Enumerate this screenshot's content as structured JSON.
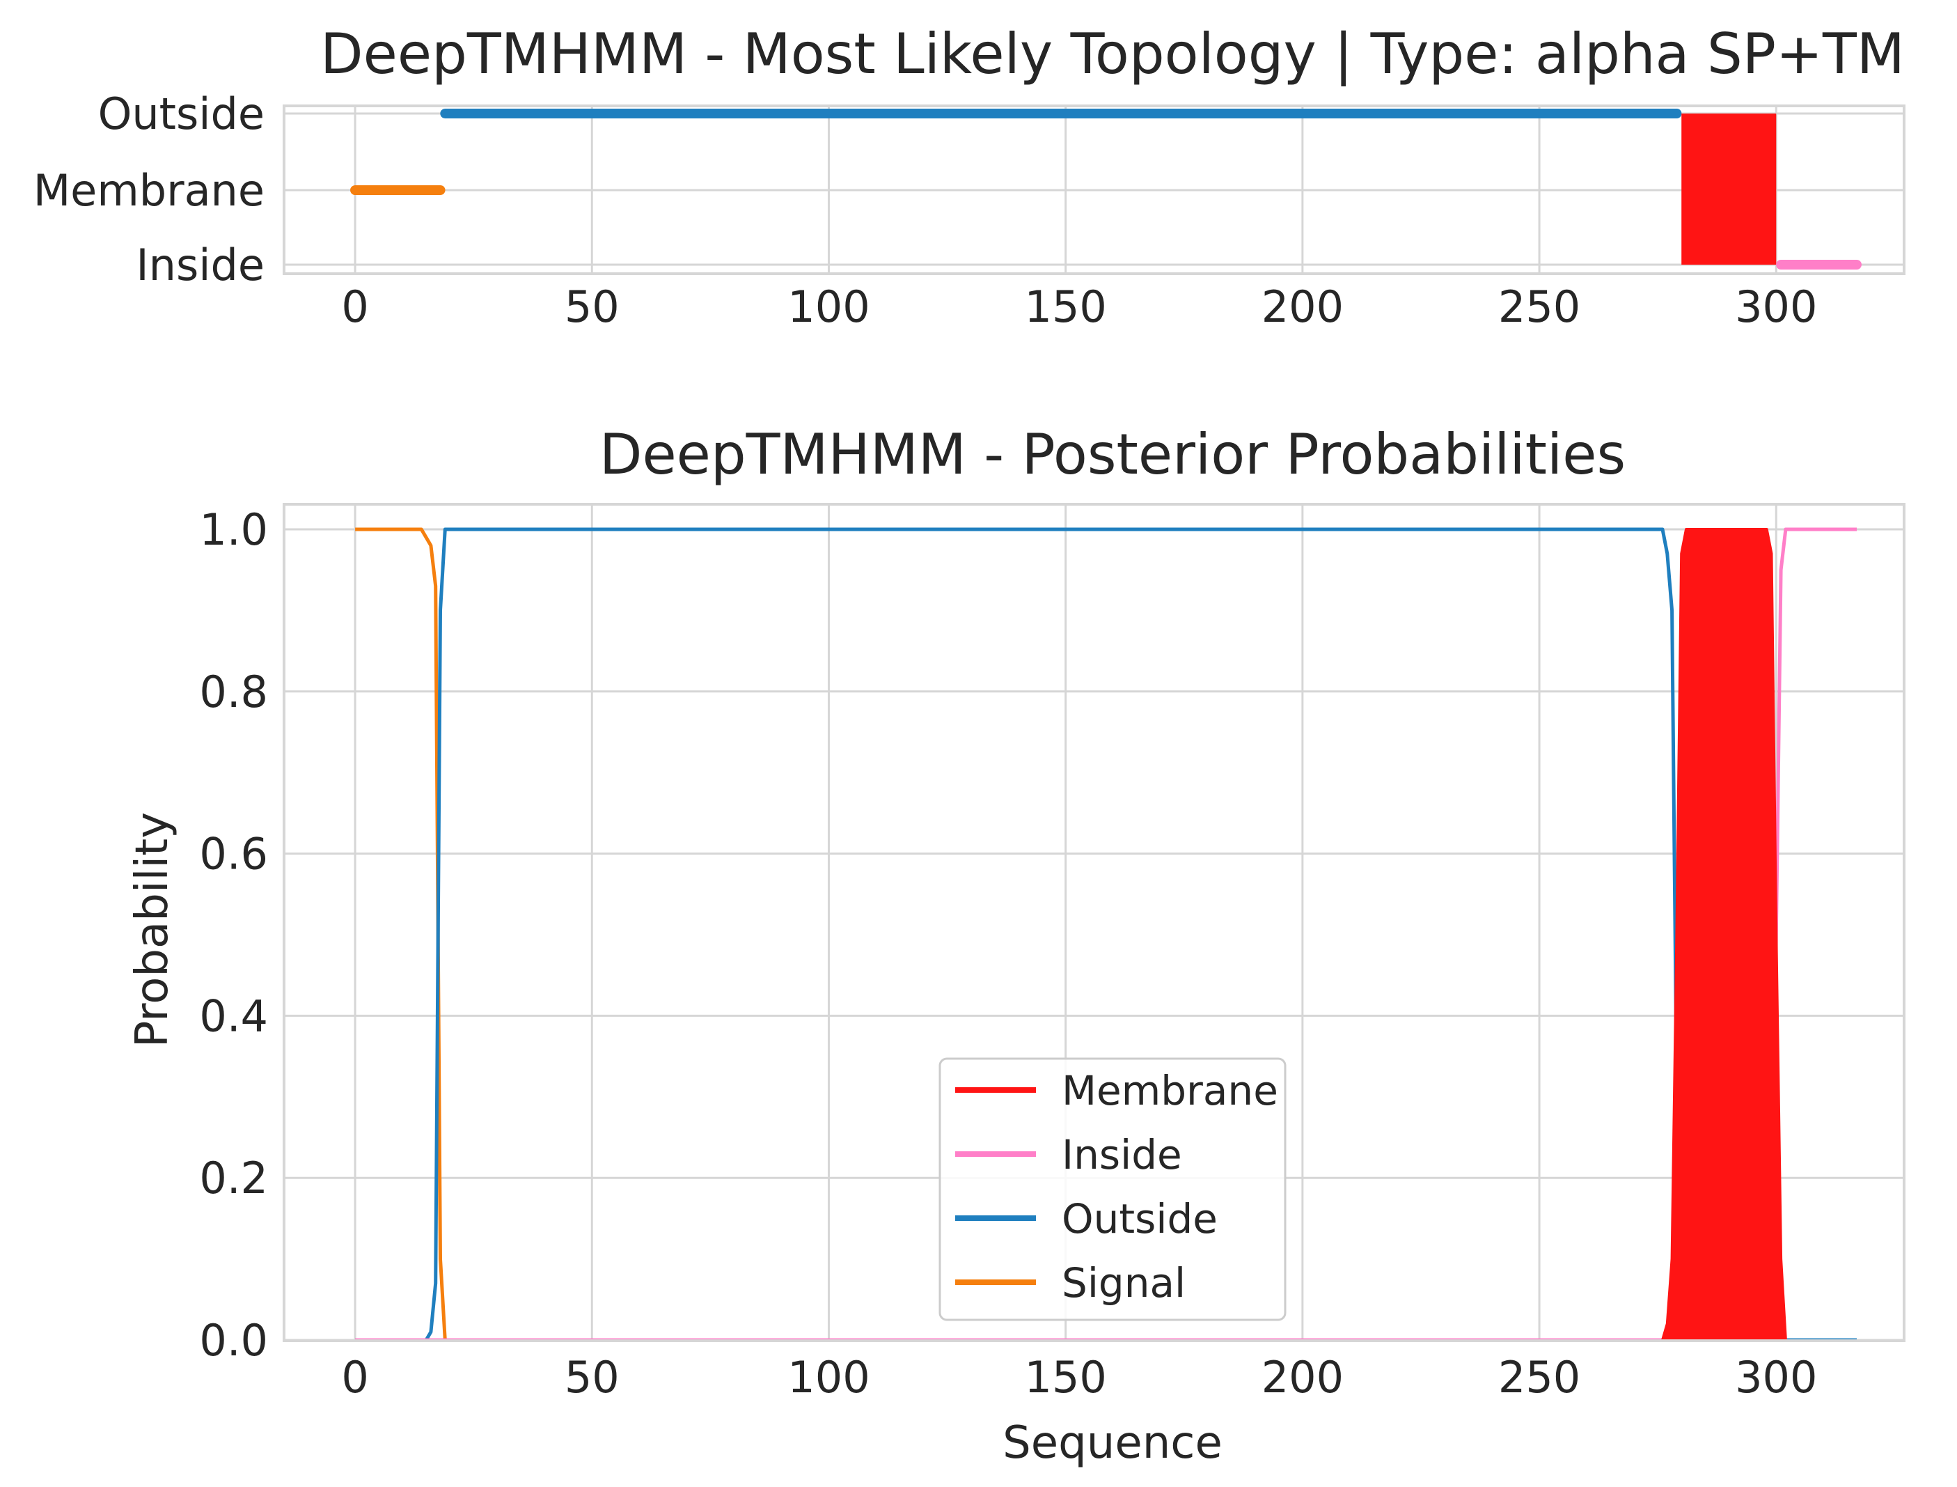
{
  "colors": {
    "membrane": "#ff1414",
    "inside": "#ff7fc8",
    "outside": "#1f7fbf",
    "signal": "#f57f0e",
    "grid": "#d6d6d6",
    "frame": "#d6d6d6"
  },
  "chart_data": [
    {
      "type": "line",
      "title": "DeepTMHMM - Most Likely Topology | Type: alpha SP+TM",
      "xlabel": "",
      "ylabel": "",
      "xlim": [
        -15,
        327
      ],
      "xticks": [
        0,
        50,
        100,
        150,
        200,
        250,
        300
      ],
      "ycategories": [
        "Inside",
        "Membrane",
        "Outside"
      ],
      "grid": true,
      "segments": [
        {
          "name": "Signal",
          "level": "Membrane",
          "x": [
            0,
            18
          ]
        },
        {
          "name": "Outside",
          "level": "Outside",
          "x": [
            19,
            279
          ]
        },
        {
          "name": "Membrane",
          "level": "Inside-Outside",
          "x": [
            280,
            300
          ],
          "filled": true
        },
        {
          "name": "Inside",
          "level": "Inside",
          "x": [
            301,
            317
          ]
        }
      ]
    },
    {
      "type": "line",
      "title": "DeepTMHMM - Posterior Probabilities",
      "xlabel": "Sequence",
      "ylabel": "Probability",
      "xlim": [
        -15,
        327
      ],
      "ylim": [
        0,
        1.03
      ],
      "xticks": [
        0,
        50,
        100,
        150,
        200,
        250,
        300
      ],
      "yticks": [
        "0.0",
        "0.2",
        "0.4",
        "0.6",
        "0.8",
        "1.0"
      ],
      "grid": true,
      "legend_position": "lower-center",
      "legend": [
        "Membrane",
        "Inside",
        "Outside",
        "Signal"
      ],
      "series": [
        {
          "name": "Membrane",
          "filled": true,
          "x": [
            276,
            277,
            278,
            279,
            280,
            281,
            298,
            299,
            300,
            301,
            302
          ],
          "y": [
            0,
            0.02,
            0.1,
            0.5,
            0.97,
            1.0,
            1.0,
            0.97,
            0.5,
            0.1,
            0
          ]
        },
        {
          "name": "Inside",
          "x": [
            0,
            298,
            299,
            300,
            301,
            302,
            317
          ],
          "y": [
            0,
            0,
            0.05,
            0.5,
            0.95,
            1.0,
            1.0
          ]
        },
        {
          "name": "Outside",
          "x": [
            0,
            15,
            16,
            17,
            18,
            19,
            276,
            277,
            278,
            279,
            280,
            317
          ],
          "y": [
            0,
            0,
            0.01,
            0.07,
            0.9,
            1.0,
            1.0,
            0.97,
            0.9,
            0.3,
            0,
            0
          ]
        },
        {
          "name": "Signal",
          "x": [
            0,
            14,
            15,
            16,
            17,
            18,
            19,
            317
          ],
          "y": [
            1.0,
            1.0,
            0.99,
            0.98,
            0.93,
            0.1,
            0,
            0
          ]
        }
      ]
    }
  ]
}
